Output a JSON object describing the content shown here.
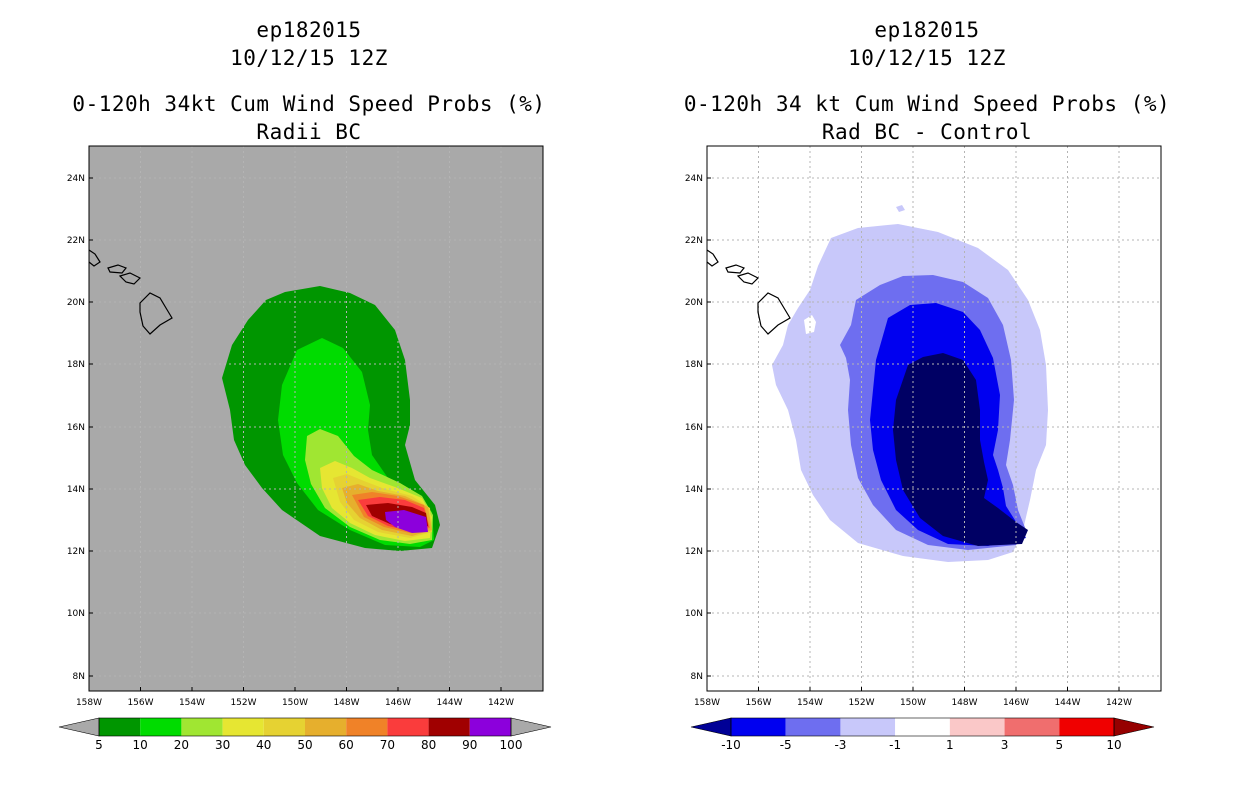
{
  "left_panel": {
    "title_line1": "ep182015",
    "title_line2": "10/12/15 12Z",
    "title_line3": "0-120h 34kt Cum Wind Speed Probs (%)",
    "title_line4": "Radii BC",
    "background_color": "#a9a9a9",
    "x_ticks": [
      "158W",
      "156W",
      "154W",
      "152W",
      "150W",
      "148W",
      "146W",
      "144W",
      "142W"
    ],
    "y_ticks": [
      "24N",
      "22N",
      "20N",
      "18N",
      "16N",
      "14N",
      "12N",
      "10N",
      "8N"
    ],
    "colorbar": {
      "labels": [
        "5",
        "10",
        "20",
        "30",
        "40",
        "50",
        "60",
        "70",
        "80",
        "90",
        "100"
      ],
      "colors": [
        "#009600",
        "#00dc00",
        "#a0e632",
        "#e6e632",
        "#e6d232",
        "#e6af2d",
        "#f08228",
        "#fa3c3c",
        "#a00000",
        "#8c00dc"
      ],
      "end_color": "#a9a9a9"
    },
    "fill_colors": {
      "p5": "#009600",
      "p10": "#00dc00",
      "p20": "#a0e632",
      "p30": "#e6e632",
      "p40": "#e6d232",
      "p50": "#e6af2d",
      "p60": "#f08228",
      "p70": "#fa3c3c",
      "p80": "#a00000",
      "p90": "#8c00dc"
    }
  },
  "right_panel": {
    "title_line1": "ep182015",
    "title_line2": "10/12/15 12Z",
    "title_line3": "0-120h 34 kt Cum Wind Speed Probs (%)",
    "title_line4": "Rad BC - Control",
    "background_color": "#ffffff",
    "x_ticks": [
      "158W",
      "156W",
      "154W",
      "152W",
      "150W",
      "148W",
      "146W",
      "144W",
      "142W"
    ],
    "y_ticks": [
      "24N",
      "22N",
      "20N",
      "18N",
      "16N",
      "14N",
      "12N",
      "10N",
      "8N"
    ],
    "colorbar": {
      "labels": [
        "-10",
        "-5",
        "-3",
        "-1",
        "1",
        "3",
        "5",
        "10"
      ],
      "colors": [
        "#0000f0",
        "#6e6ef0",
        "#c8c8fa",
        "#ffffff",
        "#fac8c8",
        "#f06e6e",
        "#f00000"
      ],
      "low_end_color": "#000096",
      "high_end_color": "#960000"
    },
    "fill_colors": {
      "m1": "#c8c8fa",
      "m3": "#6e6ef0",
      "m5": "#0000f0",
      "m10": "#000064"
    }
  }
}
